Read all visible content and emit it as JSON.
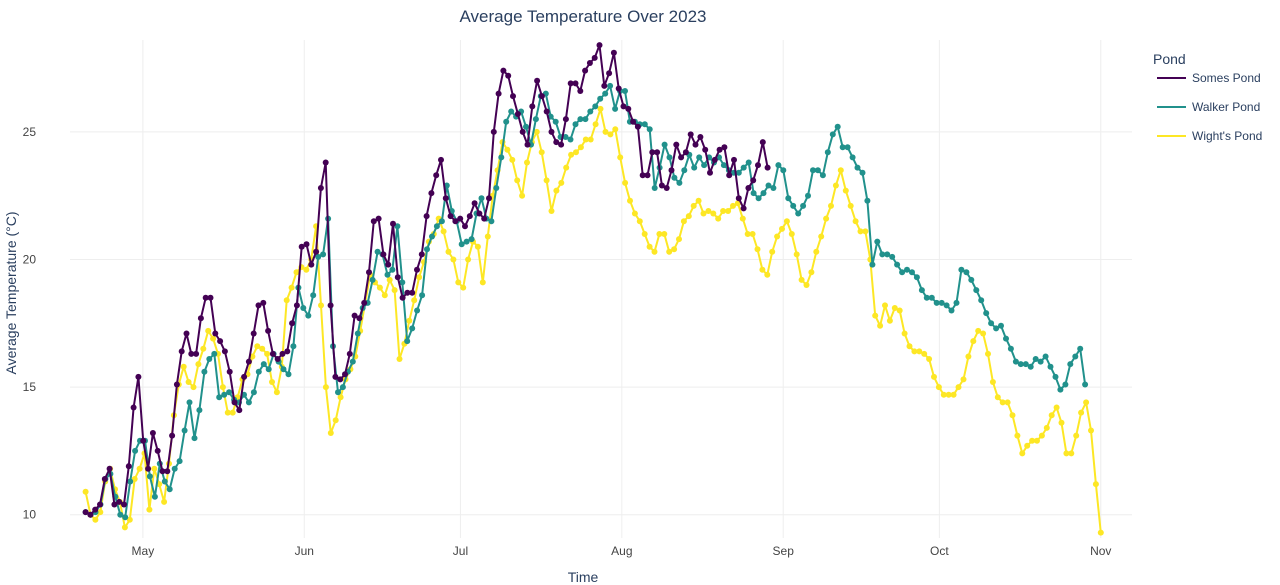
{
  "chart_data": {
    "type": "line",
    "title": "Average Temperature Over 2023",
    "xlabel": "Time",
    "ylabel": "Average Temperature (°C)",
    "x_axis": {
      "type": "date",
      "range": [
        "2023-04-17",
        "2023-11-07"
      ],
      "ticks": [
        {
          "date": "2023-05-01",
          "label": "May"
        },
        {
          "date": "2023-06-01",
          "label": "Jun"
        },
        {
          "date": "2023-07-01",
          "label": "Jul"
        },
        {
          "date": "2023-08-01",
          "label": "Aug"
        },
        {
          "date": "2023-09-01",
          "label": "Sep"
        },
        {
          "date": "2023-10-01",
          "label": "Oct"
        },
        {
          "date": "2023-11-01",
          "label": "Nov"
        }
      ]
    },
    "y_axis": {
      "range": [
        9.4,
        28.6
      ],
      "ticks": [
        10,
        15,
        20,
        25
      ]
    },
    "grid": true,
    "legend": {
      "title": "Pond",
      "placement": "top-right"
    },
    "series": [
      {
        "name": "Somes Pond",
        "color": "#440154",
        "start": "2023-04-20",
        "end": "2023-08-29",
        "values": [
          10.1,
          10.0,
          10.2,
          10.4,
          11.4,
          11.8,
          10.4,
          10.5,
          10.4,
          11.9,
          14.2,
          15.4,
          12.9,
          11.8,
          13.2,
          12.5,
          11.7,
          11.7,
          13.1,
          15.1,
          16.4,
          17.1,
          16.3,
          16.3,
          17.7,
          18.5,
          18.5,
          17.1,
          16.8,
          16.4,
          15.6,
          14.4,
          14.1,
          15.4,
          16.0,
          17.1,
          18.2,
          18.3,
          17.2,
          16.3,
          16.1,
          16.3,
          16.4,
          17.5,
          18.2,
          20.5,
          20.6,
          19.8,
          20.3,
          22.8,
          23.8,
          18.2,
          15.4,
          15.3,
          15.5,
          16.3,
          17.8,
          17.7,
          18.3,
          19.5,
          21.5,
          21.6,
          20.2,
          19.8,
          21.4,
          19.3,
          18.5,
          18.7,
          18.7,
          19.6,
          20.2,
          21.7,
          22.6,
          23.3,
          23.9,
          22.4,
          21.7,
          21.5,
          21.6,
          21.3,
          21.7,
          22.2,
          21.8,
          21.6,
          22.4,
          25.0,
          26.5,
          27.4,
          27.2,
          26.4,
          25.7,
          25.0,
          24.5,
          26.0,
          27.0,
          26.4,
          25.8,
          25.0,
          24.6,
          24.5,
          25.5,
          26.9,
          26.9,
          26.6,
          27.4,
          27.7,
          27.9,
          28.4,
          26.8,
          27.3,
          28.1,
          26.7,
          26.0,
          25.9,
          25.4,
          25.2,
          23.3,
          23.3,
          24.2,
          24.2,
          22.9,
          22.8,
          23.5,
          24.5,
          24.0,
          24.2,
          24.9,
          24.5,
          24.8,
          24.3,
          23.4,
          23.9,
          24.3,
          24.4,
          23.3,
          23.9,
          22.4,
          22.0,
          22.8,
          23.1,
          23.7,
          24.6,
          23.6
        ]
      },
      {
        "name": "Walker Pond",
        "color": "#21918c",
        "start": "2023-04-20",
        "end": "2023-10-29",
        "values": [
          10.1,
          10.0,
          10.1,
          10.4,
          11.4,
          11.6,
          10.7,
          10.0,
          9.9,
          11.3,
          12.5,
          12.9,
          12.9,
          11.5,
          10.7,
          12.0,
          11.3,
          11.0,
          11.8,
          12.1,
          13.3,
          14.4,
          13.0,
          14.1,
          15.6,
          16.1,
          16.3,
          14.6,
          14.7,
          14.8,
          14.5,
          14.4,
          14.7,
          14.4,
          14.8,
          15.6,
          15.9,
          15.7,
          16.3,
          16.0,
          15.7,
          15.5,
          16.6,
          18.9,
          18.1,
          17.8,
          18.6,
          20.1,
          20.2,
          21.6,
          16.6,
          14.8,
          15.0,
          15.6,
          16.0,
          17.1,
          18.1,
          18.3,
          19.2,
          20.3,
          20.2,
          19.4,
          19.6,
          21.3,
          19.1,
          16.8,
          17.3,
          18.0,
          18.6,
          20.4,
          20.9,
          21.3,
          21.5,
          22.9,
          21.9,
          21.5,
          20.6,
          20.7,
          20.8,
          21.8,
          22.4,
          21.6,
          21.5,
          22.8,
          24.0,
          25.4,
          25.8,
          25.6,
          25.8,
          25.2,
          24.5,
          25.5,
          26.4,
          26.5,
          25.6,
          25.4,
          24.8,
          24.8,
          24.7,
          25.3,
          25.5,
          25.5,
          25.8,
          26.0,
          26.3,
          26.5,
          26.8,
          25.9,
          26.6,
          26.6,
          25.4,
          25.4,
          25.3,
          25.3,
          25.1,
          22.8,
          23.6,
          24.5,
          24.0,
          23.2,
          23.0,
          23.5,
          24.1,
          23.6,
          24.0,
          23.7,
          24.0,
          23.8,
          24.0,
          23.7,
          23.5,
          23.4,
          23.4,
          23.6,
          23.8,
          22.6,
          22.4,
          22.6,
          22.9,
          22.8,
          23.7,
          23.5,
          22.4,
          22.1,
          21.8,
          22.1,
          22.5,
          23.5,
          23.5,
          23.3,
          24.2,
          24.9,
          25.2,
          24.4,
          24.4,
          24.0,
          23.6,
          23.4,
          22.3,
          19.8,
          20.7,
          20.2,
          20.2,
          20.1,
          19.8,
          19.5,
          19.6,
          19.5,
          19.3,
          18.8,
          18.5,
          18.5,
          18.3,
          18.3,
          18.2,
          18.0,
          18.3,
          19.6,
          19.5,
          19.2,
          18.8,
          18.4,
          17.9,
          17.5,
          17.3,
          17.4,
          16.9,
          16.5,
          16.0,
          15.9,
          15.9,
          15.8,
          16.1,
          16.0,
          16.2,
          15.8,
          15.4,
          14.9,
          15.1,
          15.9,
          16.2,
          16.5,
          15.1
        ]
      },
      {
        "name": "Wight's Pond",
        "color": "#fde725",
        "start": "2023-04-20",
        "end": "2023-11-01",
        "values": [
          10.9,
          10.0,
          9.8,
          10.1,
          11.3,
          11.8,
          11.0,
          10.5,
          9.5,
          9.8,
          11.4,
          11.8,
          12.4,
          10.2,
          11.8,
          11.2,
          10.5,
          12.0,
          13.9,
          15.1,
          15.8,
          15.2,
          15.0,
          15.9,
          16.5,
          17.2,
          16.9,
          16.3,
          15.0,
          14.0,
          14.0,
          14.6,
          15.3,
          15.5,
          16.2,
          16.6,
          16.5,
          16.3,
          15.2,
          14.8,
          15.8,
          18.4,
          18.9,
          19.5,
          19.7,
          19.6,
          20.0,
          21.3,
          18.2,
          15.0,
          13.2,
          13.7,
          14.6,
          15.3,
          15.7,
          16.2,
          17.2,
          18.3,
          19.4,
          19.1,
          18.9,
          18.6,
          19.2,
          18.8,
          16.1,
          16.7,
          17.6,
          18.4,
          19.3,
          19.9,
          20.7,
          21.0,
          21.6,
          21.1,
          20.3,
          20.0,
          19.1,
          18.9,
          20.0,
          20.7,
          20.5,
          19.1,
          20.9,
          22.5,
          23.5,
          24.6,
          24.3,
          23.9,
          23.1,
          22.5,
          23.8,
          24.6,
          25.0,
          24.2,
          23.1,
          21.9,
          22.7,
          23.0,
          23.6,
          24.1,
          24.2,
          24.4,
          24.7,
          24.7,
          25.3,
          25.9,
          25.0,
          24.9,
          25.1,
          24.0,
          23.0,
          22.3,
          21.8,
          21.5,
          21.0,
          20.5,
          20.3,
          21.0,
          21.0,
          20.3,
          20.4,
          20.8,
          21.5,
          21.7,
          22.1,
          22.3,
          21.8,
          21.9,
          21.8,
          21.6,
          21.9,
          21.9,
          22.1,
          22.2,
          21.6,
          21.0,
          21.0,
          20.4,
          19.6,
          19.4,
          20.3,
          20.9,
          21.2,
          21.5,
          21.0,
          20.2,
          19.2,
          19.0,
          19.5,
          20.3,
          20.9,
          21.6,
          22.1,
          22.9,
          23.5,
          22.7,
          22.1,
          21.5,
          21.1,
          21.1,
          20.0,
          17.8,
          17.4,
          18.2,
          17.6,
          18.1,
          18.0,
          17.1,
          16.6,
          16.4,
          16.4,
          16.3,
          16.1,
          15.4,
          15.0,
          14.7,
          14.7,
          14.7,
          15.0,
          15.3,
          16.2,
          16.8,
          17.2,
          17.1,
          16.3,
          15.2,
          14.6,
          14.4,
          14.4,
          13.9,
          13.1,
          12.4,
          12.7,
          12.9,
          12.9,
          13.1,
          13.4,
          13.9,
          14.2,
          13.6,
          12.4,
          12.4,
          13.1,
          14.0,
          14.4,
          13.3,
          11.2,
          9.3
        ]
      }
    ]
  }
}
